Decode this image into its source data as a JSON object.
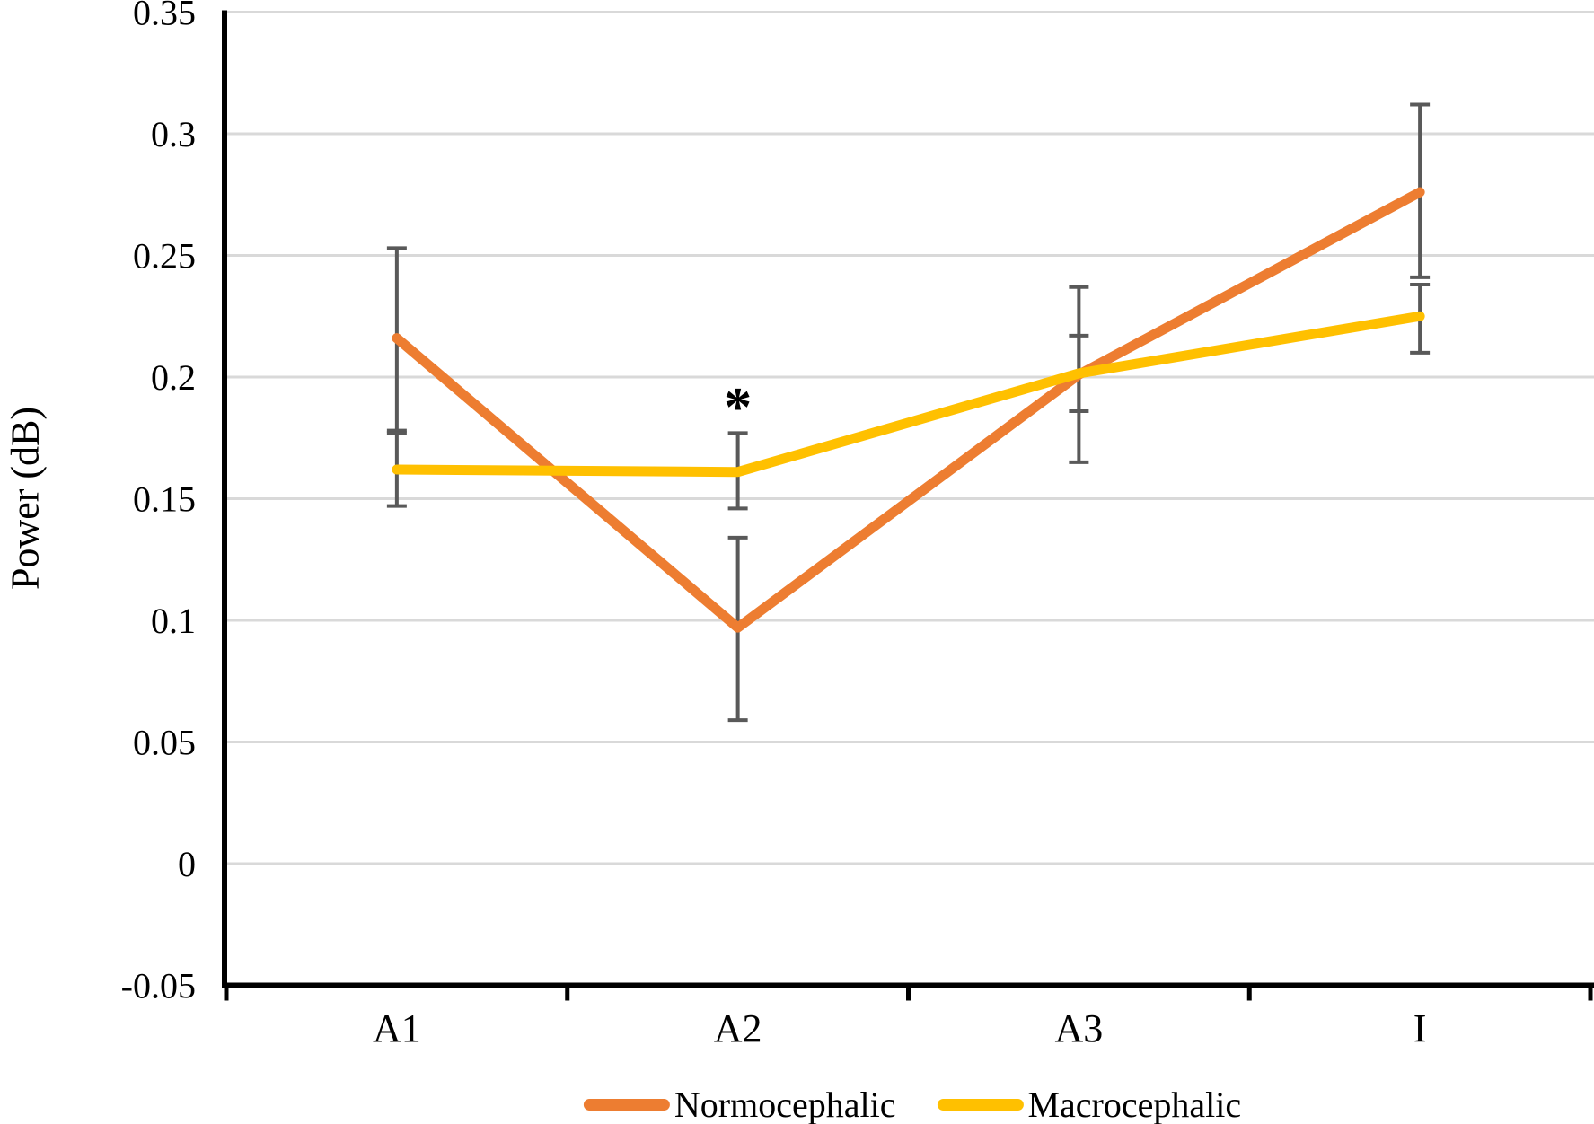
{
  "y_axis_title": "Power (dB)",
  "legend": {
    "items": [
      {
        "label": "Normocephalic",
        "color": "#ED7D31"
      },
      {
        "label": "Macrocephalic",
        "color": "#FFC000"
      }
    ]
  },
  "chart_data": {
    "type": "line",
    "categories": [
      "A1",
      "A2",
      "A3",
      "I"
    ],
    "series": [
      {
        "name": "Normocephalic",
        "color": "#ED7D31",
        "values": [
          0.216,
          0.097,
          0.201,
          0.276
        ],
        "error_low": [
          0.178,
          0.059,
          0.165,
          0.241
        ],
        "error_high": [
          0.253,
          0.134,
          0.237,
          0.312
        ]
      },
      {
        "name": "Macrocephalic",
        "color": "#FFC000",
        "values": [
          0.162,
          0.161,
          0.2015,
          0.225
        ],
        "error_low": [
          0.147,
          0.146,
          0.186,
          0.21
        ],
        "error_high": [
          0.177,
          0.177,
          0.217,
          0.238
        ]
      }
    ],
    "title": "",
    "xlabel": "",
    "ylabel": "Power (dB)",
    "ylim": [
      -0.05,
      0.35
    ],
    "yticks": [
      0.35,
      0.3,
      0.25,
      0.2,
      0.15,
      0.1,
      0.05,
      0,
      -0.05
    ],
    "ytick_labels": [
      "0.35",
      "0.3",
      "0.25",
      "0.2",
      "0.15",
      "0.1",
      "0.05",
      "0",
      "-0.05"
    ],
    "grid": true,
    "legend_position": "bottom",
    "annotations": [
      {
        "text": "*",
        "category": "A2",
        "value": 0.18
      }
    ],
    "colors": {
      "gridline": "#D9D9D9",
      "axis": "#000000",
      "error_bar": "#595959",
      "text": "#000000"
    }
  }
}
